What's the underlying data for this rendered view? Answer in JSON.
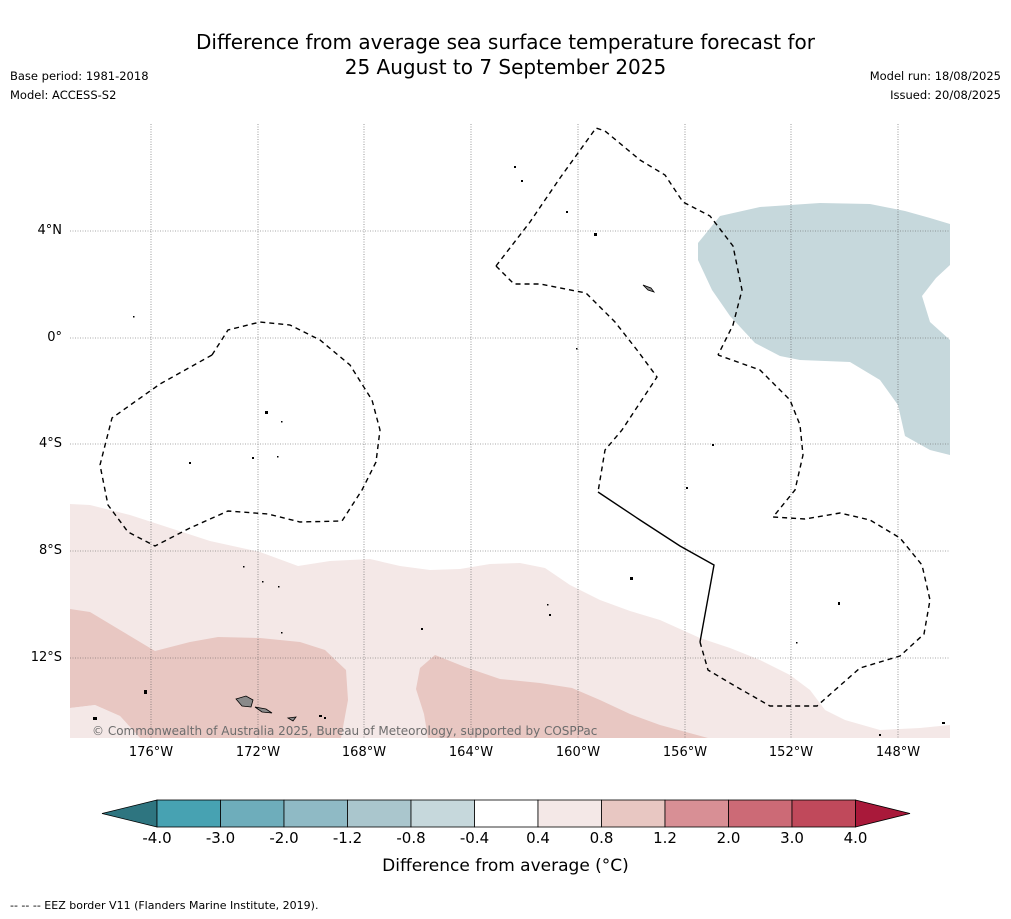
{
  "title": {
    "line1": "Difference from average sea surface temperature forecast for",
    "line2": "25 August to 7 September 2025"
  },
  "meta_left": {
    "base_period": "Base period: 1981-2018",
    "model": "Model: ACCESS-S2"
  },
  "meta_right": {
    "model_run": "Model run: 18/08/2025",
    "issued": "Issued: 20/08/2025"
  },
  "map": {
    "lat_labels": [
      "4°N",
      "0°",
      "4°S",
      "8°S",
      "12°S"
    ],
    "lon_labels": [
      "176°W",
      "172°W",
      "168°W",
      "164°W",
      "160°W",
      "156°W",
      "152°W",
      "148°W"
    ],
    "copyright": "© Commonwealth of Australia 2025, Bureau of Meteorology, supported by COSPPac"
  },
  "colorbar": {
    "labels": [
      "-4.0",
      "-3.0",
      "-2.0",
      "-1.2",
      "-0.8",
      "-0.4",
      "0.4",
      "0.8",
      "1.2",
      "2.0",
      "3.0",
      "4.0"
    ],
    "colors": [
      "#2e7580",
      "#47a2b2",
      "#6eadbb",
      "#8fbac5",
      "#aac6cd",
      "#c6d8dc",
      "#ffffff",
      "#f4e8e7",
      "#e8c7c2",
      "#d88f95",
      "#cc6a76",
      "#c0495b",
      "#a9193a"
    ],
    "title": "Difference from average (°C)"
  },
  "footer": "--  --  -- EEZ border V11 (Flanders Marine Institute, 2019)."
}
